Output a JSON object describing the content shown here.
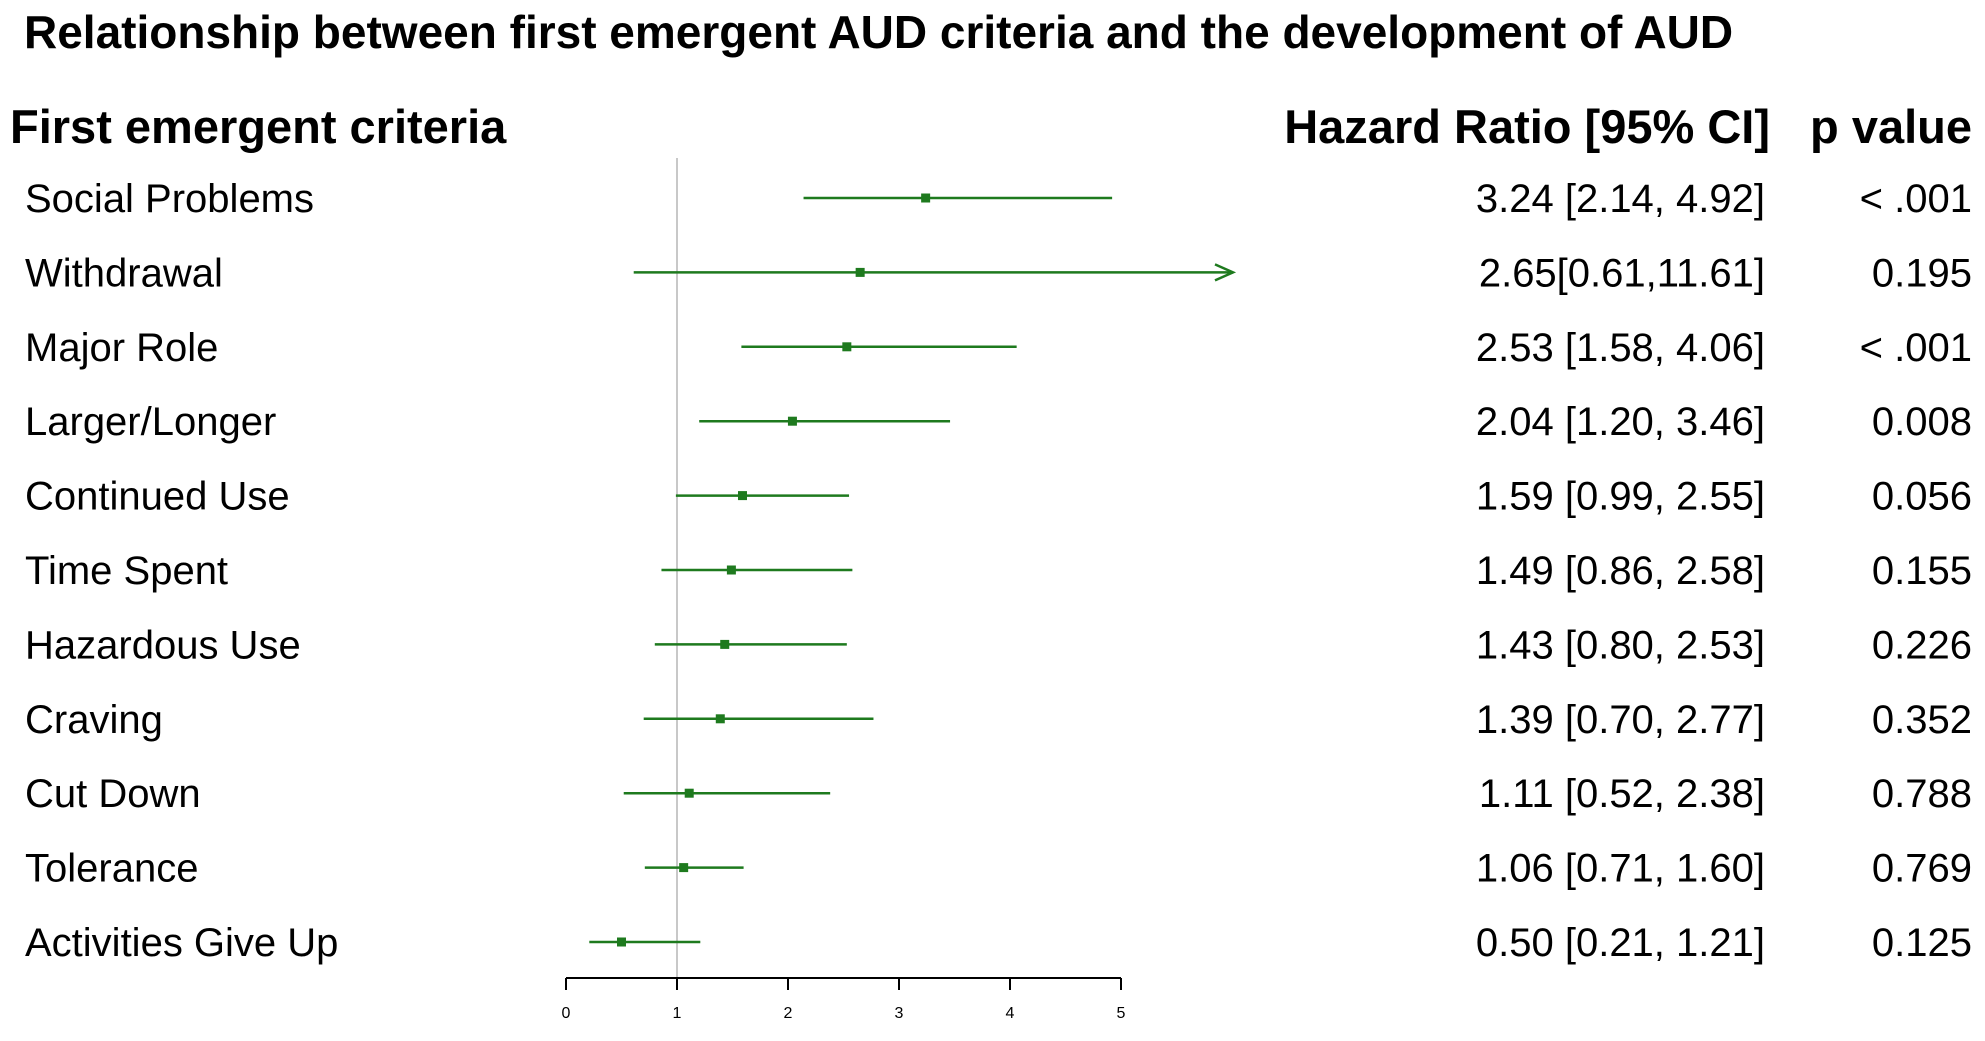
{
  "chart_data": {
    "type": "forest",
    "title": "Relationship between first emergent AUD criteria and the development of AUD",
    "left_header": "First emergent criteria",
    "hr_header": "Hazard Ratio [95% CI]",
    "p_header": "p value",
    "x_ticks": [
      "0",
      "1",
      "2",
      "3",
      "4",
      "5"
    ],
    "xlim": [
      0,
      5
    ],
    "reference_line": 1,
    "series_color": "#1e7a1e",
    "rows": [
      {
        "label": "Social Problems",
        "hr": 3.24,
        "lower": 2.14,
        "upper": 4.92,
        "hr_text": "3.24 [2.14, 4.92]",
        "p_text": "< .001"
      },
      {
        "label": "Withdrawal",
        "hr": 2.65,
        "lower": 0.61,
        "upper": 11.61,
        "hr_text": "2.65[0.61,11.61]",
        "p_text": "0.195"
      },
      {
        "label": "Major Role",
        "hr": 2.53,
        "lower": 1.58,
        "upper": 4.06,
        "hr_text": "2.53 [1.58, 4.06]",
        "p_text": "< .001"
      },
      {
        "label": "Larger/Longer",
        "hr": 2.04,
        "lower": 1.2,
        "upper": 3.46,
        "hr_text": "2.04 [1.20, 3.46]",
        "p_text": "0.008"
      },
      {
        "label": "Continued Use",
        "hr": 1.59,
        "lower": 0.99,
        "upper": 2.55,
        "hr_text": "1.59 [0.99, 2.55]",
        "p_text": "0.056"
      },
      {
        "label": "Time Spent",
        "hr": 1.49,
        "lower": 0.86,
        "upper": 2.58,
        "hr_text": "1.49 [0.86, 2.58]",
        "p_text": "0.155"
      },
      {
        "label": "Hazardous Use",
        "hr": 1.43,
        "lower": 0.8,
        "upper": 2.53,
        "hr_text": "1.43 [0.80, 2.53]",
        "p_text": "0.226"
      },
      {
        "label": "Craving",
        "hr": 1.39,
        "lower": 0.7,
        "upper": 2.77,
        "hr_text": "1.39 [0.70, 2.77]",
        "p_text": "0.352"
      },
      {
        "label": "Cut Down",
        "hr": 1.11,
        "lower": 0.52,
        "upper": 2.38,
        "hr_text": "1.11 [0.52, 2.38]",
        "p_text": "0.788"
      },
      {
        "label": "Tolerance",
        "hr": 1.06,
        "lower": 0.71,
        "upper": 1.6,
        "hr_text": "1.06 [0.71, 1.60]",
        "p_text": "0.769"
      },
      {
        "label": "Activities Give Up",
        "hr": 0.5,
        "lower": 0.21,
        "upper": 1.21,
        "hr_text": "0.50 [0.21, 1.21]",
        "p_text": "0.125"
      }
    ]
  }
}
